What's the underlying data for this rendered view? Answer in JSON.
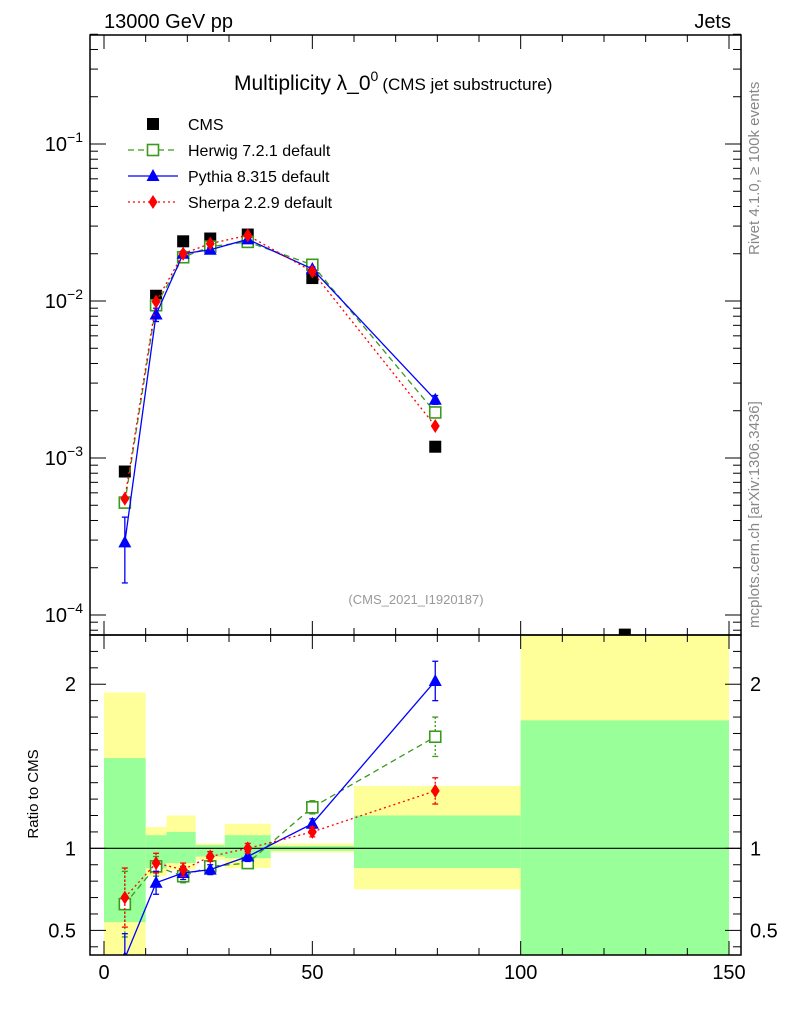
{
  "header": {
    "left": "13000 GeV pp",
    "right": "Jets"
  },
  "title": {
    "main": "Multiplicity λ_0",
    "sup": "0",
    "sub": "(CMS jet substructure)"
  },
  "side_labels": {
    "rivet": "Rivet 4.1.0, ≥ 100k events",
    "mcplots": "mcplots.cern.ch [arXiv:1306.3436]"
  },
  "watermark": "(CMS_2021_I1920187)",
  "ratio_ylabel": "Ratio to CMS",
  "colors": {
    "cms": "#000000",
    "herwig": "#3a9a1a",
    "pythia": "#0000ff",
    "sherpa": "#ff0000",
    "band_yellow": "#ffff99",
    "band_green": "#99ff99"
  },
  "legend": [
    {
      "key": "cms",
      "label": "CMS"
    },
    {
      "key": "herwig",
      "label": "Herwig 7.2.1 default"
    },
    {
      "key": "pythia",
      "label": "Pythia 8.315 default"
    },
    {
      "key": "sherpa",
      "label": "Sherpa 2.2.9 default"
    }
  ],
  "chart_data": {
    "type": "scatter",
    "xlim": [
      0,
      150
    ],
    "x_ticks": [
      0,
      50,
      100,
      150
    ],
    "main": {
      "yscale": "log",
      "ylim": [
        8e-05,
        0.6
      ],
      "y_tick_labels": [
        "10^-4",
        "10^-3",
        "10^-2",
        "10^-1"
      ],
      "series": [
        {
          "name": "CMS",
          "key": "cms",
          "marker": "square",
          "x": [
            5,
            12.5,
            19,
            25.5,
            34.5,
            50,
            79.5,
            125
          ],
          "y": [
            0.00082,
            0.0108,
            0.024,
            0.025,
            0.0265,
            0.014,
            0.00118,
            7.5e-05
          ]
        },
        {
          "name": "Herwig 7.2.1 default",
          "key": "herwig",
          "marker": "open-square",
          "dash": "6,4",
          "x": [
            5,
            12.5,
            19,
            25.5,
            34.5,
            50,
            79.5
          ],
          "y": [
            0.00052,
            0.0094,
            0.019,
            0.0222,
            0.0238,
            0.017,
            0.00195
          ]
        },
        {
          "name": "Pythia 8.315 default",
          "key": "pythia",
          "marker": "triangle",
          "dash": "",
          "x": [
            5,
            12.5,
            19,
            25.5,
            34.5,
            50,
            79.5
          ],
          "y": [
            0.00029,
            0.0082,
            0.02,
            0.0212,
            0.0247,
            0.016,
            0.00235
          ],
          "yerr": [
            0.00013,
            0.0008,
            0.0008,
            0.0007,
            0.0007,
            0.0005,
            0.00015
          ]
        },
        {
          "name": "Sherpa 2.2.9 default",
          "key": "sherpa",
          "marker": "diamond",
          "dash": "2,3",
          "x": [
            5,
            12.5,
            19,
            25.5,
            34.5,
            50,
            79.5
          ],
          "y": [
            0.00055,
            0.0099,
            0.02,
            0.0232,
            0.0262,
            0.0154,
            0.0016
          ]
        }
      ]
    },
    "ratio": {
      "ylim": [
        0.35,
        2.3
      ],
      "y_ticks": [
        0.5,
        1,
        2
      ],
      "bands": [
        {
          "x0": 0,
          "x1": 10,
          "yellow": [
            0.0,
            1.95
          ],
          "green": [
            0.55,
            1.55
          ]
        },
        {
          "x0": 10,
          "x1": 15,
          "yellow": [
            0.83,
            1.13
          ],
          "green": [
            0.88,
            1.08
          ]
        },
        {
          "x0": 15,
          "x1": 22,
          "yellow": [
            0.87,
            1.2
          ],
          "green": [
            0.91,
            1.1
          ]
        },
        {
          "x0": 22,
          "x1": 29,
          "yellow": [
            0.93,
            1.03
          ],
          "green": [
            0.95,
            1.02
          ]
        },
        {
          "x0": 29,
          "x1": 40,
          "yellow": [
            0.88,
            1.15
          ],
          "green": [
            0.94,
            1.08
          ]
        },
        {
          "x0": 40,
          "x1": 60,
          "yellow": [
            0.975,
            1.03
          ],
          "green": [
            0.985,
            1.015
          ]
        },
        {
          "x0": 60,
          "x1": 100,
          "yellow": [
            0.75,
            1.38
          ],
          "green": [
            0.88,
            1.2
          ]
        },
        {
          "x0": 100,
          "x1": 150,
          "yellow": [
            0.0,
            2.6
          ],
          "green": [
            0.0,
            1.78
          ]
        }
      ],
      "series": [
        {
          "key": "herwig",
          "marker": "open-square",
          "dash": "6,4",
          "x": [
            5,
            12.5,
            19,
            25.5,
            34.5,
            50,
            79.5
          ],
          "y": [
            0.66,
            0.89,
            0.83,
            0.89,
            0.91,
            1.25,
            1.68
          ],
          "yerr": [
            0.2,
            0.06,
            0.04,
            0.03,
            0.03,
            0.04,
            0.12
          ]
        },
        {
          "key": "pythia",
          "marker": "triangle",
          "dash": "",
          "x": [
            5,
            12.5,
            19,
            25.5,
            34.5,
            50,
            79.5
          ],
          "y": [
            0.33,
            0.79,
            0.85,
            0.87,
            0.95,
            1.15,
            2.02
          ],
          "yerr": [
            0.15,
            0.07,
            0.04,
            0.03,
            0.03,
            0.03,
            0.12
          ]
        },
        {
          "key": "sherpa",
          "marker": "diamond",
          "dash": "2,3",
          "x": [
            5,
            12.5,
            19,
            25.5,
            34.5,
            50,
            79.5
          ],
          "y": [
            0.7,
            0.91,
            0.87,
            0.95,
            1.0,
            1.1,
            1.35
          ],
          "yerr": [
            0.18,
            0.06,
            0.04,
            0.03,
            0.03,
            0.03,
            0.08
          ]
        }
      ]
    }
  }
}
